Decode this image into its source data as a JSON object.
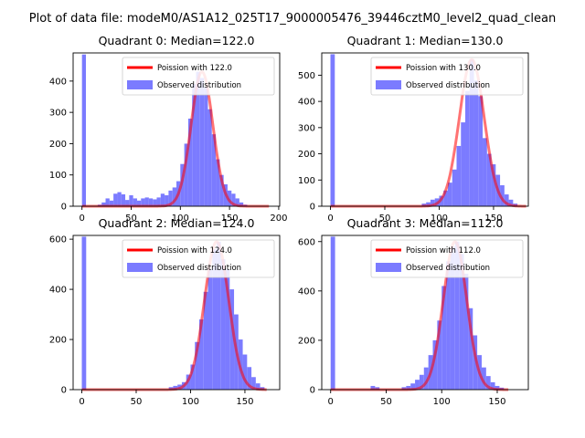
{
  "suptitle": "Plot of data file: modeM0/AS1A12_025T17_9000005476_39446cztM0_level2_quad_clean",
  "colors": {
    "hist": "#7b7bff",
    "poisson": "#ff0000",
    "axis": "#000000",
    "background": "#ffffff"
  },
  "chart_data": [
    {
      "type": "bar",
      "title": "Quadrant 0: Median=122.0",
      "median": 122.0,
      "xlim": [
        -9,
        201
      ],
      "ylim": [
        0,
        490
      ],
      "xticks": [
        0,
        50,
        100,
        150,
        200
      ],
      "yticks": [
        0,
        100,
        200,
        300,
        400
      ],
      "legend": {
        "position": "top-right",
        "line_label": "Poission with 122.0",
        "bar_label": "Observed distribution"
      },
      "bin_width": 4,
      "bins": [
        [
          0,
          485
        ],
        [
          16,
          5
        ],
        [
          20,
          12
        ],
        [
          24,
          25
        ],
        [
          28,
          18
        ],
        [
          32,
          40
        ],
        [
          36,
          45
        ],
        [
          40,
          38
        ],
        [
          44,
          20
        ],
        [
          48,
          35
        ],
        [
          52,
          25
        ],
        [
          56,
          18
        ],
        [
          60,
          25
        ],
        [
          64,
          28
        ],
        [
          68,
          25
        ],
        [
          72,
          22
        ],
        [
          76,
          28
        ],
        [
          80,
          40
        ],
        [
          84,
          35
        ],
        [
          88,
          50
        ],
        [
          92,
          60
        ],
        [
          96,
          80
        ],
        [
          100,
          135
        ],
        [
          104,
          200
        ],
        [
          108,
          280
        ],
        [
          112,
          390
        ],
        [
          116,
          430
        ],
        [
          120,
          410
        ],
        [
          124,
          380
        ],
        [
          128,
          310
        ],
        [
          132,
          230
        ],
        [
          136,
          150
        ],
        [
          140,
          100
        ],
        [
          144,
          70
        ],
        [
          148,
          50
        ],
        [
          152,
          40
        ],
        [
          156,
          25
        ],
        [
          160,
          12
        ],
        [
          164,
          5
        ]
      ],
      "poisson_curve": {
        "mu": 122.0,
        "x_range": [
          0,
          190
        ],
        "peak": 430
      }
    },
    {
      "type": "bar",
      "title": "Quadrant 1: Median=130.0",
      "median": 130.0,
      "xlim": [
        -8,
        182
      ],
      "ylim": [
        0,
        585
      ],
      "xticks": [
        0,
        50,
        100,
        150
      ],
      "yticks": [
        0,
        100,
        200,
        300,
        400,
        500
      ],
      "legend": {
        "position": "top-right",
        "line_label": "Poission with 130.0",
        "bar_label": "Observed distribution"
      },
      "bin_width": 4,
      "bins": [
        [
          0,
          580
        ],
        [
          84,
          10
        ],
        [
          88,
          15
        ],
        [
          92,
          25
        ],
        [
          96,
          30
        ],
        [
          100,
          40
        ],
        [
          104,
          60
        ],
        [
          108,
          90
        ],
        [
          112,
          140
        ],
        [
          116,
          230
        ],
        [
          120,
          320
        ],
        [
          124,
          440
        ],
        [
          128,
          560
        ],
        [
          132,
          480
        ],
        [
          136,
          420
        ],
        [
          140,
          260
        ],
        [
          144,
          200
        ],
        [
          148,
          160
        ],
        [
          152,
          120
        ],
        [
          156,
          80
        ],
        [
          160,
          45
        ],
        [
          164,
          25
        ],
        [
          168,
          10
        ]
      ],
      "poisson_curve": {
        "mu": 130.0,
        "x_range": [
          0,
          180
        ],
        "peak": 560
      }
    },
    {
      "type": "bar",
      "title": "Quadrant 2: Median=124.0",
      "median": 124.0,
      "xlim": [
        -8,
        182
      ],
      "ylim": [
        0,
        615
      ],
      "xticks": [
        0,
        50,
        100,
        150
      ],
      "yticks": [
        0,
        200,
        400,
        600
      ],
      "legend": {
        "position": "top-right",
        "line_label": "Poission with 124.0",
        "bar_label": "Observed distribution"
      },
      "bin_width": 4,
      "bins": [
        [
          0,
          610
        ],
        [
          80,
          10
        ],
        [
          84,
          15
        ],
        [
          88,
          20
        ],
        [
          92,
          30
        ],
        [
          96,
          60
        ],
        [
          100,
          100
        ],
        [
          104,
          190
        ],
        [
          108,
          280
        ],
        [
          112,
          390
        ],
        [
          116,
          480
        ],
        [
          120,
          560
        ],
        [
          124,
          590
        ],
        [
          128,
          520
        ],
        [
          132,
          480
        ],
        [
          136,
          400
        ],
        [
          140,
          300
        ],
        [
          144,
          200
        ],
        [
          148,
          140
        ],
        [
          152,
          90
        ],
        [
          156,
          50
        ],
        [
          160,
          25
        ],
        [
          164,
          10
        ]
      ],
      "poisson_curve": {
        "mu": 124.0,
        "x_range": [
          0,
          170
        ],
        "peak": 590
      }
    },
    {
      "type": "bar",
      "title": "Quadrant 3: Median=112.0",
      "median": 112.0,
      "xlim": [
        -8,
        178
      ],
      "ylim": [
        0,
        625
      ],
      "xticks": [
        0,
        50,
        100,
        150
      ],
      "yticks": [
        0,
        200,
        400,
        600
      ],
      "legend": {
        "position": "top-right",
        "line_label": "Poission with 112.0",
        "bar_label": "Observed distribution"
      },
      "bin_width": 4,
      "bins": [
        [
          0,
          620
        ],
        [
          36,
          15
        ],
        [
          40,
          10
        ],
        [
          64,
          10
        ],
        [
          68,
          15
        ],
        [
          72,
          25
        ],
        [
          76,
          40
        ],
        [
          80,
          60
        ],
        [
          84,
          90
        ],
        [
          88,
          140
        ],
        [
          92,
          200
        ],
        [
          96,
          280
        ],
        [
          100,
          420
        ],
        [
          104,
          520
        ],
        [
          108,
          580
        ],
        [
          112,
          600
        ],
        [
          116,
          550
        ],
        [
          120,
          470
        ],
        [
          124,
          330
        ],
        [
          128,
          220
        ],
        [
          132,
          140
        ],
        [
          136,
          90
        ],
        [
          140,
          55
        ],
        [
          144,
          30
        ],
        [
          148,
          15
        ],
        [
          152,
          8
        ]
      ],
      "poisson_curve": {
        "mu": 112.0,
        "x_range": [
          0,
          160
        ],
        "peak": 600
      }
    }
  ]
}
